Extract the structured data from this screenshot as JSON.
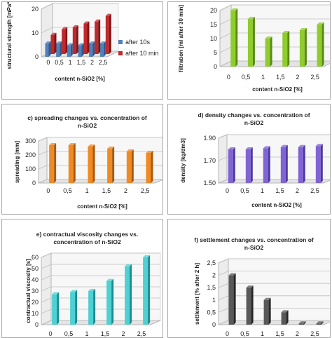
{
  "colors": {
    "blue": "#4f81bd",
    "blue_dark": "#2e5a8c",
    "red": "#c0282c",
    "red_dark": "#7d1518",
    "green": "#8fcc2e",
    "green_dark": "#5a8a12",
    "orange": "#f08a24",
    "orange_dark": "#a85808",
    "purple": "#8064d6",
    "purple_dark": "#4e3a9c",
    "cyan": "#4fd0d2",
    "cyan_dark": "#1e8c90",
    "gray": "#595959",
    "gray_dark": "#262626",
    "wall": "#dcdcdc",
    "grid": "#bfbfbf"
  },
  "chart_data": [
    {
      "id": "a",
      "type": "bar",
      "title": "",
      "xlabel": "content n-SiO2 [%]",
      "ylabel": "structural strength [mPa*s]",
      "categories": [
        "0",
        "0,5",
        "1",
        "1,5",
        "2",
        "2,5"
      ],
      "yticks": [
        "0",
        "10",
        "20"
      ],
      "ylim": [
        0,
        25
      ],
      "legend_position": "right",
      "series": [
        {
          "name": "after 10s",
          "values": [
            7,
            7,
            6,
            6,
            7,
            7
          ]
        },
        {
          "name": "after 10 min",
          "values": [
            10,
            13,
            14,
            16,
            17,
            20
          ]
        }
      ]
    },
    {
      "id": "b",
      "type": "bar",
      "title": "",
      "xlabel": "content n-SiO2 [%]",
      "ylabel": "filtration [ml after 30 min]",
      "categories": [
        "0",
        "0,5",
        "1",
        "1,5",
        "2",
        "2,5"
      ],
      "yticks": [
        "0",
        "5",
        "10",
        "15",
        "20"
      ],
      "ylim": [
        0,
        20
      ],
      "series": [
        {
          "values": [
            20,
            17,
            10,
            12,
            13,
            15
          ]
        }
      ]
    },
    {
      "id": "c",
      "type": "bar",
      "title": "c) spreading changes vs. concentration of n-SiO2",
      "xlabel": "content n-SiO2 [%]",
      "ylabel": "spreading [mm]",
      "categories": [
        "0",
        "0,5",
        "1",
        "1,5",
        "2",
        "2,5"
      ],
      "yticks": [
        "0",
        "100",
        "200",
        "300"
      ],
      "ylim": [
        0,
        300
      ],
      "series": [
        {
          "values": [
            270,
            270,
            260,
            245,
            225,
            215
          ]
        }
      ]
    },
    {
      "id": "d",
      "type": "bar",
      "title": "d) density changes vs. concentration of n-SiO2",
      "xlabel": "content n-SiO2 [%]",
      "ylabel": "density [kg/dm3]",
      "categories": [
        "0",
        "0,5",
        "1",
        "1,5",
        "2",
        "2,5"
      ],
      "yticks": [
        "1.50",
        "1.70",
        "1.90"
      ],
      "ylim": [
        1.5,
        1.9
      ],
      "series": [
        {
          "values": [
            1.8,
            1.8,
            1.81,
            1.82,
            1.82,
            1.83
          ]
        }
      ]
    },
    {
      "id": "e",
      "type": "bar",
      "title": "e) contractual viscosity changes vs. concentration of n-SiO2",
      "xlabel": "",
      "ylabel": "contractual viscosity [s]",
      "categories": [
        "0",
        "0,5",
        "1",
        "1,5",
        "2",
        "2,5"
      ],
      "yticks": [
        "0",
        "10",
        "20",
        "30",
        "40",
        "50",
        "60"
      ],
      "ylim": [
        0,
        60
      ],
      "series": [
        {
          "values": [
            27,
            29,
            30,
            39,
            52,
            60
          ]
        }
      ]
    },
    {
      "id": "f",
      "type": "bar",
      "title": "f) settlement changes vs. concentration of n-SiO2",
      "xlabel": "",
      "ylabel": "settlement [% after 2 h]",
      "categories": [
        "0",
        "0,5",
        "1",
        "1,5",
        "2",
        "2,5"
      ],
      "yticks": [
        "0",
        "0,5",
        "1",
        "1,5",
        "2",
        "2,5"
      ],
      "ylim": [
        0,
        2.5
      ],
      "series": [
        {
          "values": [
            2.0,
            1.5,
            1.0,
            0.5,
            0.05,
            0.05
          ]
        }
      ]
    }
  ]
}
